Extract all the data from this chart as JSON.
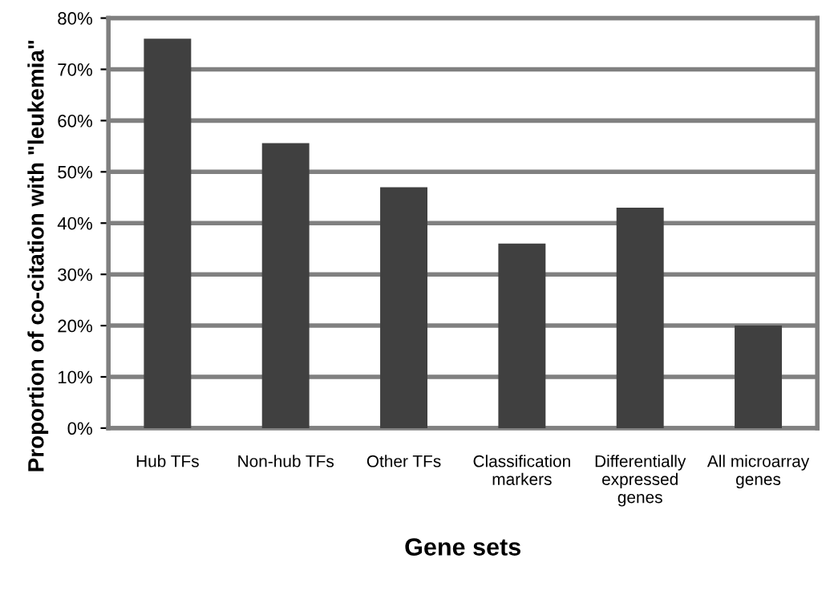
{
  "chart_data": {
    "type": "bar",
    "xlabel": "Gene sets",
    "ylabel": "Proportion of co-citation with \"leukemia\"",
    "categories": [
      "Hub TFs",
      "Non-hub TFs",
      "Other TFs",
      "Classification\nmarkers",
      "Differentially\nexpressed\ngenes",
      "All microarray\ngenes"
    ],
    "values": [
      76,
      55.6,
      47,
      36,
      43,
      20
    ],
    "color": "#404040",
    "ylim": [
      0,
      80
    ],
    "yticks": [
      {
        "value": 0,
        "label": "0%"
      },
      {
        "value": 10,
        "label": "10%"
      },
      {
        "value": 20,
        "label": "20%"
      },
      {
        "value": 30,
        "label": "30%"
      },
      {
        "value": 40,
        "label": "40%"
      },
      {
        "value": 50,
        "label": "50%"
      },
      {
        "value": 60,
        "label": "60%"
      },
      {
        "value": 70,
        "label": "70%"
      },
      {
        "value": 80,
        "label": "80%"
      }
    ],
    "grid": "y"
  }
}
